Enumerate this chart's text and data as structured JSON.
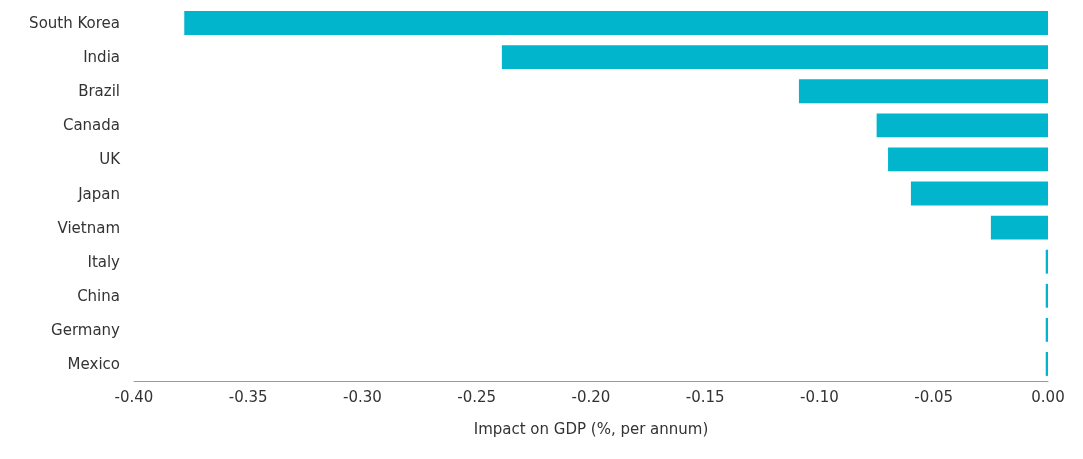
{
  "chart_data": {
    "type": "bar",
    "orientation": "horizontal",
    "xlabel": "Impact on GDP (%, per annum)",
    "categories": [
      "South Korea",
      "India",
      "Brazil",
      "Canada",
      "UK",
      "Japan",
      "Vietnam",
      "Italy",
      "China",
      "Germany",
      "Mexico"
    ],
    "values": [
      -0.378,
      -0.239,
      -0.109,
      -0.075,
      -0.07,
      -0.06,
      -0.025,
      -0.001,
      -0.001,
      -0.001,
      -0.001
    ],
    "color": "#00b5cc",
    "xlim": [
      -0.4,
      0
    ],
    "xticks": [
      {
        "value": -0.4,
        "label": "-0.40"
      },
      {
        "value": -0.35,
        "label": "-0.35"
      },
      {
        "value": -0.3,
        "label": "-0.30"
      },
      {
        "value": -0.25,
        "label": "-0.25"
      },
      {
        "value": -0.2,
        "label": "-0.20"
      },
      {
        "value": -0.15,
        "label": "-0.15"
      },
      {
        "value": -0.1,
        "label": "-0.10"
      },
      {
        "value": -0.05,
        "label": "-0.05"
      },
      {
        "value": 0,
        "label": "0.00"
      }
    ],
    "grid": false
  }
}
